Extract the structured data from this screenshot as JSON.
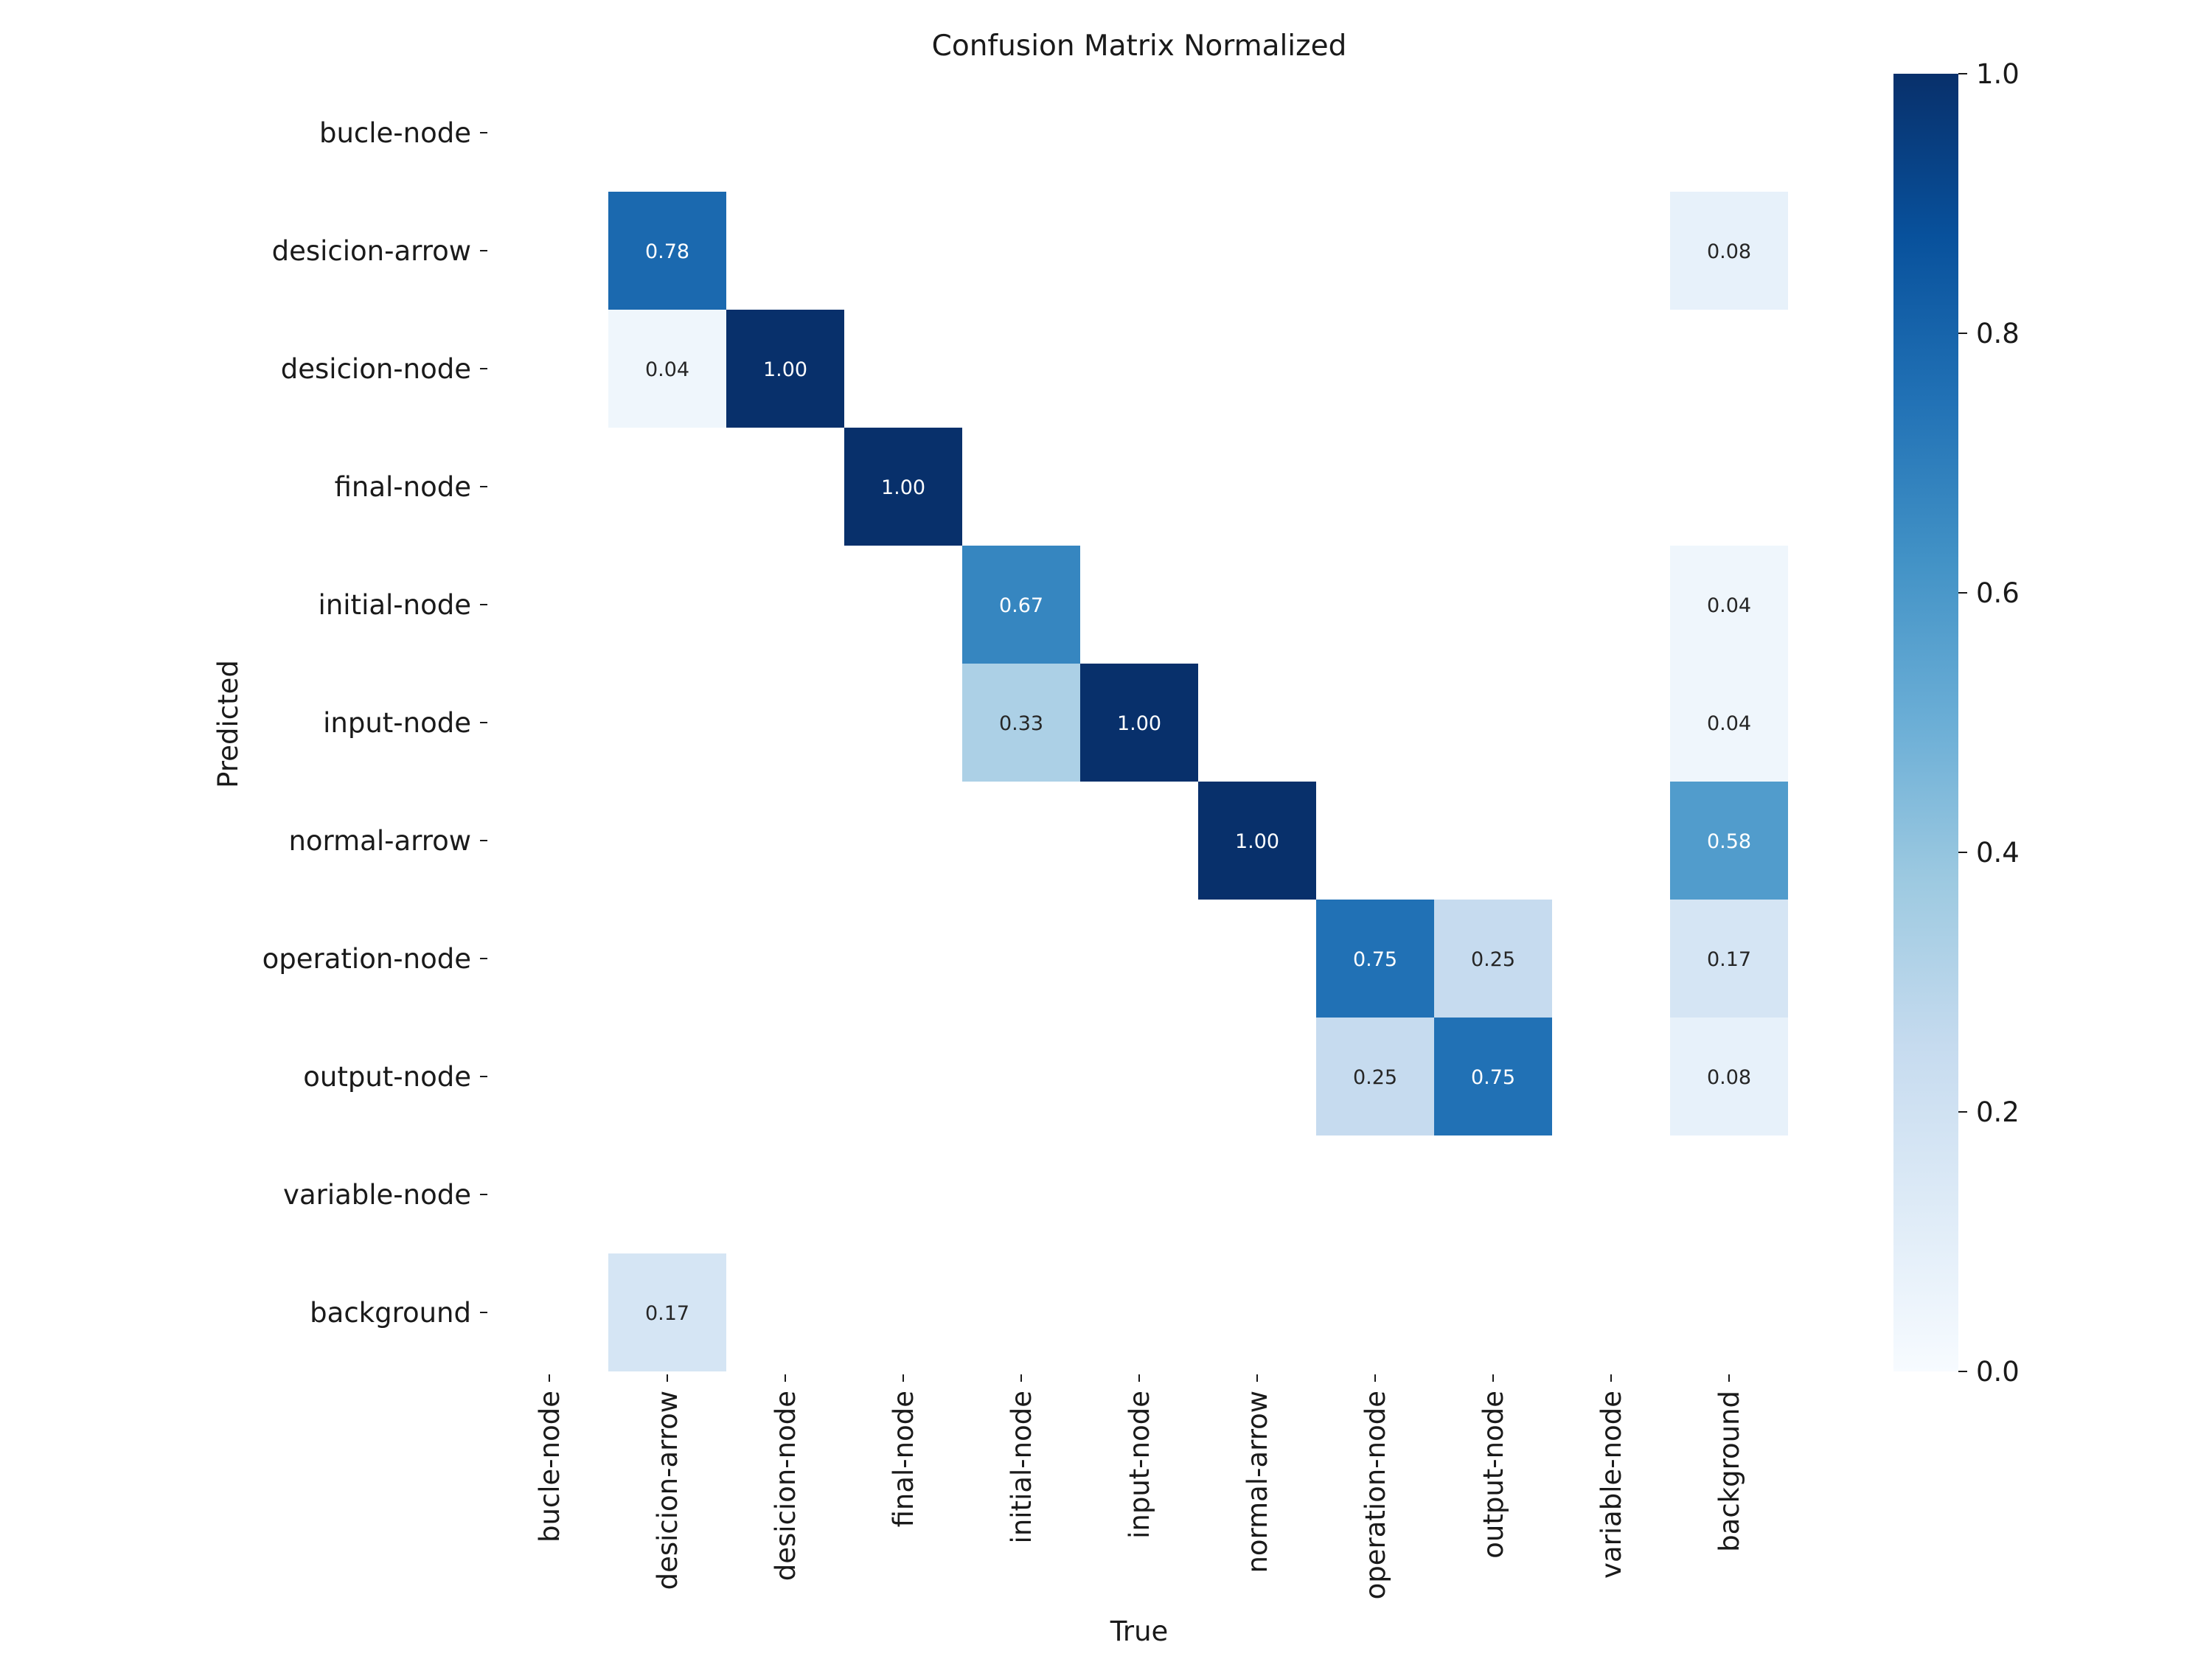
{
  "chart_data": {
    "type": "heatmap",
    "title": "Confusion Matrix Normalized",
    "xlabel": "True",
    "ylabel": "Predicted",
    "x_categories": [
      "bucle-node",
      "desicion-arrow",
      "desicion-node",
      "final-node",
      "initial-node",
      "input-node",
      "normal-arrow",
      "operation-node",
      "output-node",
      "variable-node",
      "background"
    ],
    "y_categories": [
      "bucle-node",
      "desicion-arrow",
      "desicion-node",
      "final-node",
      "initial-node",
      "input-node",
      "normal-arrow",
      "operation-node",
      "output-node",
      "variable-node",
      "background"
    ],
    "matrix": [
      [
        null,
        null,
        null,
        null,
        null,
        null,
        null,
        null,
        null,
        null,
        null
      ],
      [
        null,
        0.78,
        null,
        null,
        null,
        null,
        null,
        null,
        null,
        null,
        0.08
      ],
      [
        null,
        0.04,
        1.0,
        null,
        null,
        null,
        null,
        null,
        null,
        null,
        null
      ],
      [
        null,
        null,
        null,
        1.0,
        null,
        null,
        null,
        null,
        null,
        null,
        null
      ],
      [
        null,
        null,
        null,
        null,
        0.67,
        null,
        null,
        null,
        null,
        null,
        0.04
      ],
      [
        null,
        null,
        null,
        null,
        0.33,
        1.0,
        null,
        null,
        null,
        null,
        0.04
      ],
      [
        null,
        null,
        null,
        null,
        null,
        null,
        1.0,
        null,
        null,
        null,
        0.58
      ],
      [
        null,
        null,
        null,
        null,
        null,
        null,
        null,
        0.75,
        0.25,
        null,
        0.17
      ],
      [
        null,
        null,
        null,
        null,
        null,
        null,
        null,
        0.25,
        0.75,
        null,
        0.08
      ],
      [
        null,
        null,
        null,
        null,
        null,
        null,
        null,
        null,
        null,
        null,
        null
      ],
      [
        null,
        0.17,
        null,
        null,
        null,
        null,
        null,
        null,
        null,
        null,
        null
      ]
    ],
    "value_format": "0.00",
    "colormap": "Blues",
    "colorbar": {
      "range": [
        0.0,
        1.0
      ],
      "ticks": [
        0.0,
        0.2,
        0.4,
        0.6,
        0.8,
        1.0
      ],
      "tick_labels": [
        "0.0",
        "0.2",
        "0.4",
        "0.6",
        "0.8",
        "1.0"
      ]
    },
    "text_colors": {
      "dark": "#262626",
      "light": "#ffffff"
    }
  }
}
